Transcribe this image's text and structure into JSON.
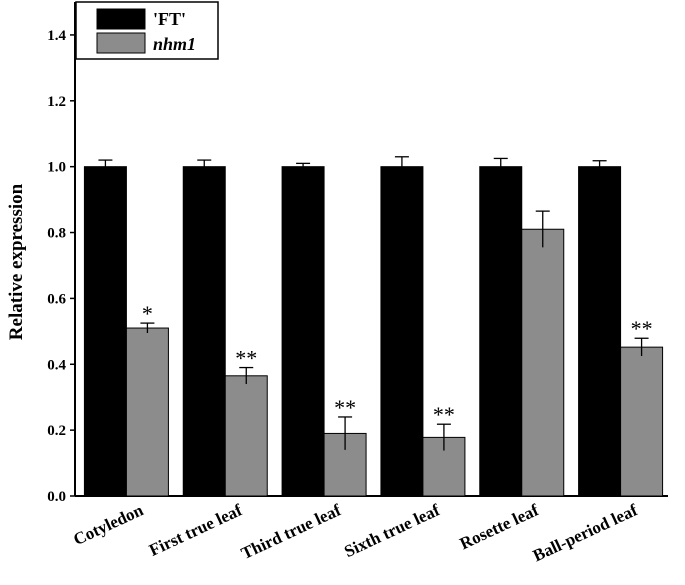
{
  "chart_data": {
    "type": "bar",
    "title": "",
    "xlabel": "",
    "ylabel": "Relative expression",
    "ylim": [
      0,
      1.5
    ],
    "yticks": [
      "0.0",
      "0.2",
      "0.4",
      "0.6",
      "0.8",
      "1.0",
      "1.2",
      "1.4"
    ],
    "categories": [
      "Cotyledon",
      "First true leaf",
      "Third true leaf",
      "Sixth true leaf",
      "Rosette leaf",
      "Ball-period leaf"
    ],
    "series": [
      {
        "name": "'FT'",
        "color": "#000000",
        "values": [
          1.0,
          1.0,
          1.0,
          1.0,
          1.0,
          1.0
        ],
        "errors": [
          0.02,
          0.02,
          0.01,
          0.03,
          0.025,
          0.018
        ]
      },
      {
        "name": "nhm1",
        "italic": true,
        "color": "#8c8c8c",
        "values": [
          0.51,
          0.365,
          0.19,
          0.178,
          0.81,
          0.452
        ],
        "errors": [
          0.015,
          0.025,
          0.05,
          0.04,
          0.055,
          0.027
        ],
        "significance": [
          "*",
          "**",
          "**",
          "**",
          "",
          "**"
        ]
      }
    ],
    "legend_position": "top-left",
    "grid": false
  }
}
